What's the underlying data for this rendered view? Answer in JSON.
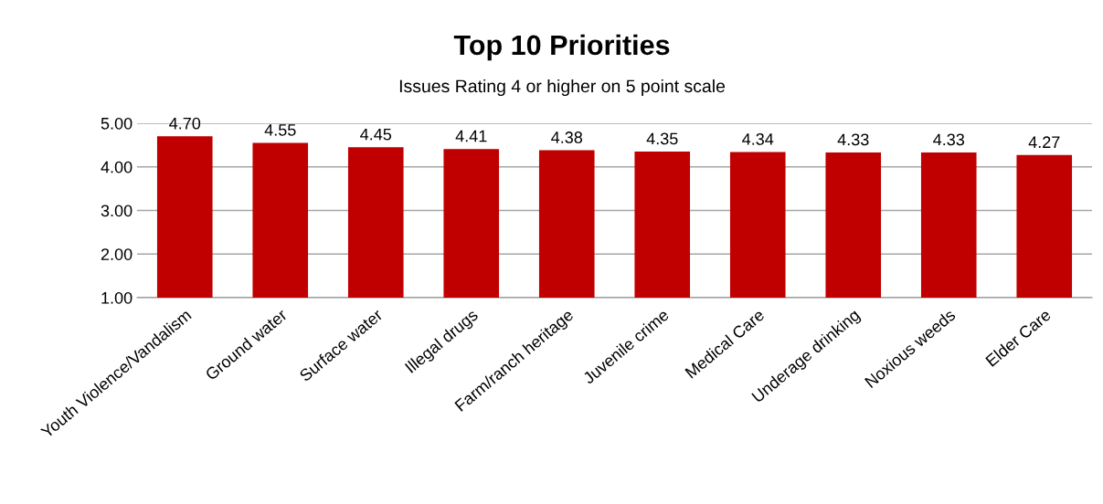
{
  "chart_data": {
    "type": "bar",
    "title": "Top 10 Priorities",
    "subtitle": "Issues Rating 4 or higher on 5 point scale",
    "categories": [
      "Youth Violence/Vandalism",
      "Ground water",
      "Surface water",
      "Illegal drugs",
      "Farm/ranch heritage",
      "Juvenile crime",
      "Medical Care",
      "Underage drinking",
      "Noxious weeds",
      "Elder Care"
    ],
    "values": [
      4.7,
      4.55,
      4.45,
      4.41,
      4.38,
      4.35,
      4.34,
      4.33,
      4.33,
      4.27
    ],
    "value_labels": [
      "4.70",
      "4.55",
      "4.45",
      "4.41",
      "4.38",
      "4.35",
      "4.34",
      "4.33",
      "4.33",
      "4.27"
    ],
    "color": "#c00000",
    "ylim": [
      1,
      5
    ],
    "yticks": [
      {
        "value": 1,
        "label": "1.00"
      },
      {
        "value": 2,
        "label": "2.00"
      },
      {
        "value": 3,
        "label": "3.00"
      },
      {
        "value": 4,
        "label": "4.00"
      },
      {
        "value": 5,
        "label": "5.00"
      }
    ],
    "grid": "y"
  }
}
